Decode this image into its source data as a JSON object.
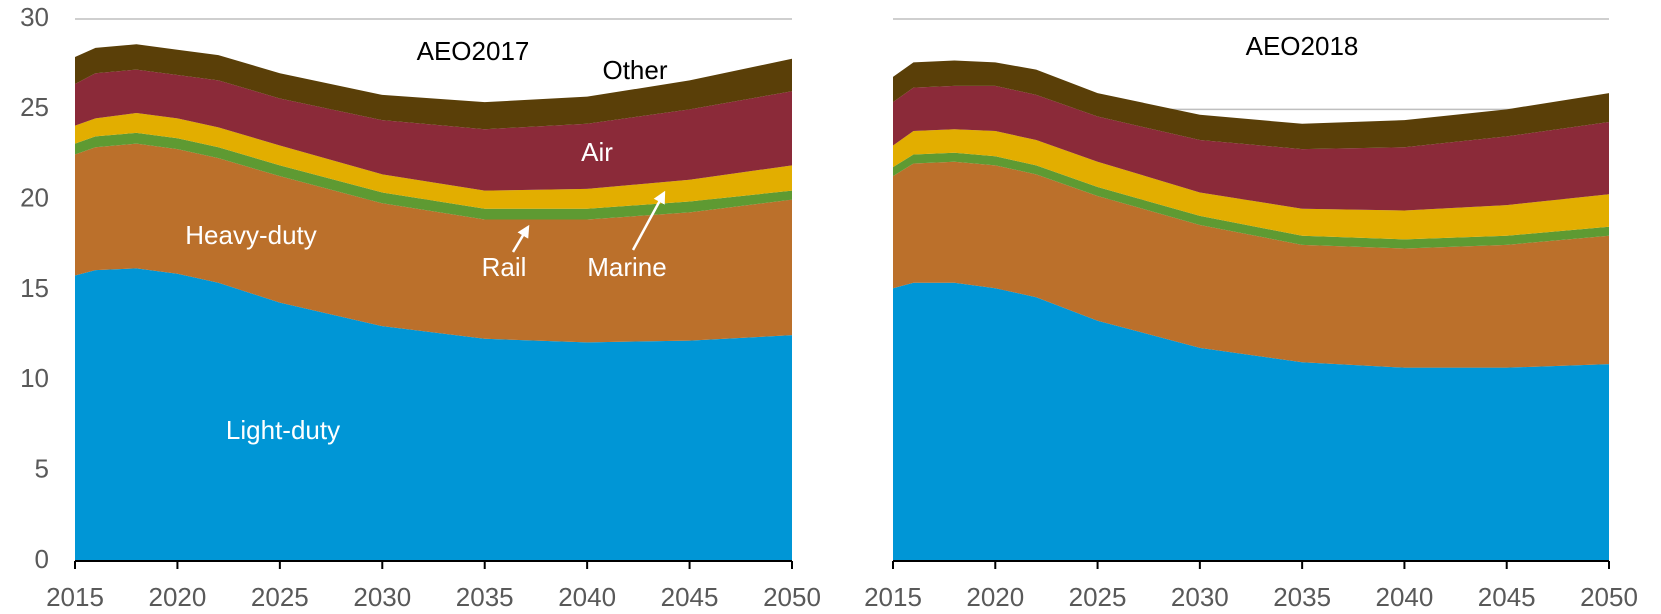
{
  "chart_data": [
    {
      "type": "area",
      "title": "AEO2017",
      "x": [
        2015,
        2016,
        2018,
        2020,
        2022,
        2025,
        2030,
        2035,
        2040,
        2045,
        2050
      ],
      "xlim": [
        2015,
        2050
      ],
      "xticks": [
        2015,
        2020,
        2025,
        2030,
        2035,
        2040,
        2045,
        2050
      ],
      "ylim": [
        0,
        30
      ],
      "yticks": [
        0,
        5,
        10,
        15,
        20,
        25,
        30
      ],
      "grid": true,
      "show_ytick_labels": true,
      "series": [
        {
          "name": "Light-duty",
          "color": "#0096d6",
          "values": [
            15.8,
            16.1,
            16.2,
            15.9,
            15.4,
            14.3,
            13.0,
            12.3,
            12.1,
            12.2,
            12.5
          ]
        },
        {
          "name": "Heavy-duty",
          "color": "#bb702b",
          "values": [
            6.7,
            6.8,
            6.9,
            6.9,
            6.9,
            7.0,
            6.8,
            6.6,
            6.8,
            7.1,
            7.5
          ]
        },
        {
          "name": "Rail",
          "color": "#5e9a32",
          "values": [
            0.6,
            0.6,
            0.6,
            0.6,
            0.6,
            0.6,
            0.6,
            0.6,
            0.6,
            0.6,
            0.5
          ]
        },
        {
          "name": "Marine",
          "color": "#e2ae00",
          "values": [
            1.0,
            1.0,
            1.1,
            1.1,
            1.1,
            1.1,
            1.0,
            1.0,
            1.1,
            1.2,
            1.4
          ]
        },
        {
          "name": "Air",
          "color": "#8b2a39",
          "values": [
            2.3,
            2.5,
            2.4,
            2.4,
            2.6,
            2.6,
            3.0,
            3.4,
            3.6,
            3.9,
            4.1
          ]
        },
        {
          "name": "Other",
          "color": "#5a3f08",
          "values": [
            1.5,
            1.4,
            1.4,
            1.4,
            1.4,
            1.4,
            1.4,
            1.5,
            1.5,
            1.6,
            1.8
          ]
        }
      ]
    },
    {
      "type": "area",
      "title": "AEO2018",
      "x": [
        2015,
        2016,
        2018,
        2020,
        2022,
        2025,
        2030,
        2035,
        2040,
        2045,
        2050
      ],
      "xlim": [
        2015,
        2050
      ],
      "xticks": [
        2015,
        2020,
        2025,
        2030,
        2035,
        2040,
        2045,
        2050
      ],
      "ylim": [
        0,
        30
      ],
      "yticks": [
        0,
        5,
        10,
        15,
        20,
        25,
        30
      ],
      "grid": true,
      "show_ytick_labels": false,
      "series": [
        {
          "color": "#0096d6",
          "values": [
            15.1,
            15.4,
            15.4,
            15.1,
            14.6,
            13.3,
            11.8,
            11.0,
            10.7,
            10.7,
            10.9
          ]
        },
        {
          "color": "#bb702b",
          "values": [
            6.2,
            6.6,
            6.7,
            6.8,
            6.8,
            6.9,
            6.8,
            6.5,
            6.6,
            6.8,
            7.1
          ]
        },
        {
          "color": "#5e9a32",
          "values": [
            0.5,
            0.5,
            0.5,
            0.5,
            0.5,
            0.5,
            0.5,
            0.5,
            0.5,
            0.5,
            0.5
          ]
        },
        {
          "color": "#e2ae00",
          "values": [
            1.2,
            1.3,
            1.3,
            1.4,
            1.4,
            1.4,
            1.3,
            1.5,
            1.6,
            1.7,
            1.8
          ]
        },
        {
          "color": "#8b2a39",
          "values": [
            2.4,
            2.4,
            2.4,
            2.5,
            2.5,
            2.5,
            2.9,
            3.3,
            3.5,
            3.8,
            4.0
          ]
        },
        {
          "color": "#5a3f08",
          "values": [
            1.4,
            1.4,
            1.4,
            1.3,
            1.4,
            1.3,
            1.4,
            1.4,
            1.5,
            1.5,
            1.6
          ]
        }
      ]
    }
  ]
}
